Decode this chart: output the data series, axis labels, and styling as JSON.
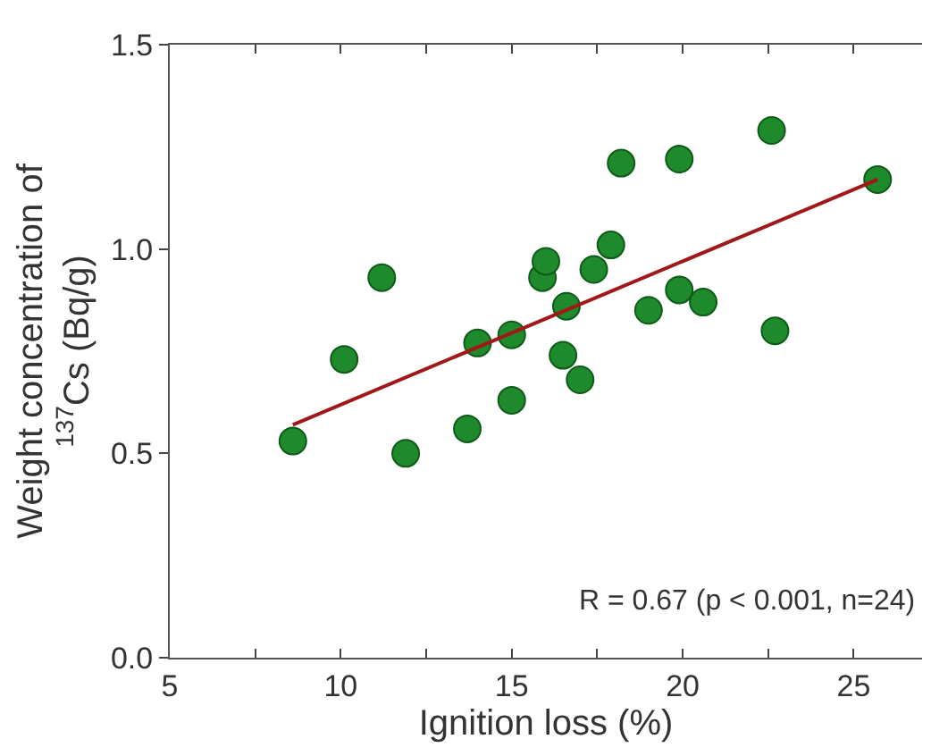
{
  "chart_data": {
    "type": "scatter",
    "xlabel": "Ignition loss (%)",
    "ylabel": "Weight concentration of\n$^{137}$Cs (Bq/g)",
    "xlim": [
      5,
      27
    ],
    "ylim": [
      0,
      1.5
    ],
    "xticks": [
      5,
      {
        "value": 7.5,
        "label": null
      },
      10,
      {
        "value": 12.5,
        "label": null
      },
      15,
      {
        "value": 17.5,
        "label": null
      },
      20,
      {
        "value": 22.5,
        "label": null
      },
      25
    ],
    "yticks": [
      {
        "value": 0,
        "label": "0.0"
      },
      {
        "value": 0.5,
        "label": "0.5"
      },
      {
        "value": 1.0,
        "label": "1.0"
      },
      {
        "value": 1.5,
        "label": "1.5"
      }
    ],
    "legend": false,
    "marker": "circle",
    "series": [
      {
        "color": "#1f8a2c",
        "x": [
          8.6,
          10.1,
          11.2,
          11.9,
          13.7,
          14.0,
          15.0,
          15.0,
          15.9,
          16.0,
          16.6,
          16.5,
          17.0,
          17.4,
          17.9,
          18.2,
          19.0,
          19.9,
          19.9,
          20.6,
          22.6,
          22.7,
          25.7
        ],
        "values": [
          0.53,
          0.73,
          0.93,
          0.5,
          0.56,
          0.77,
          0.79,
          0.63,
          0.93,
          0.97,
          0.86,
          0.74,
          0.68,
          0.95,
          1.01,
          1.21,
          0.85,
          1.22,
          0.9,
          0.87,
          1.29,
          0.8,
          1.17
        ]
      },
      {
        "type": "line",
        "color": "#a01818",
        "marker": "none",
        "line_style": "solid",
        "x": [
          8.6,
          25.7
        ],
        "values": [
          0.57,
          1.17
        ]
      }
    ],
    "annotations": [
      "R = 0.67 (p < 0.001, n=24)"
    ]
  }
}
